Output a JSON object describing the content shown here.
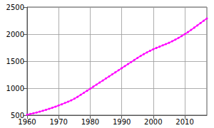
{
  "chart_data": {
    "type": "line",
    "x": [
      1960,
      1961,
      1962,
      1963,
      1964,
      1965,
      1966,
      1967,
      1968,
      1969,
      1970,
      1971,
      1972,
      1973,
      1974,
      1975,
      1976,
      1977,
      1978,
      1979,
      1980,
      1981,
      1982,
      1983,
      1984,
      1985,
      1986,
      1987,
      1988,
      1989,
      1990,
      1991,
      1992,
      1993,
      1994,
      1995,
      1996,
      1997,
      1998,
      1999,
      2000,
      2001,
      2002,
      2003,
      2004,
      2005,
      2006,
      2007,
      2008,
      2009,
      2010,
      2011,
      2012,
      2013,
      2014,
      2015,
      2016,
      2017
    ],
    "values": [
      510,
      522,
      536,
      550,
      565,
      582,
      600,
      618,
      638,
      658,
      680,
      702,
      726,
      750,
      775,
      805,
      840,
      878,
      915,
      952,
      990,
      1028,
      1066,
      1104,
      1142,
      1180,
      1218,
      1256,
      1294,
      1332,
      1370,
      1408,
      1446,
      1484,
      1522,
      1560,
      1596,
      1630,
      1662,
      1692,
      1720,
      1745,
      1768,
      1792,
      1816,
      1840,
      1868,
      1898,
      1930,
      1964,
      2000,
      2038,
      2078,
      2120,
      2162,
      2205,
      2248,
      2290
    ],
    "color": "#ff00ff",
    "marker": "circle",
    "xlim": [
      1960,
      2017
    ],
    "xticks": [
      1960,
      1970,
      1980,
      1990,
      2000,
      2010
    ],
    "ylim": [
      500,
      2500
    ],
    "yticks": [
      500,
      1000,
      1500,
      2000,
      2500
    ],
    "grid": true
  }
}
